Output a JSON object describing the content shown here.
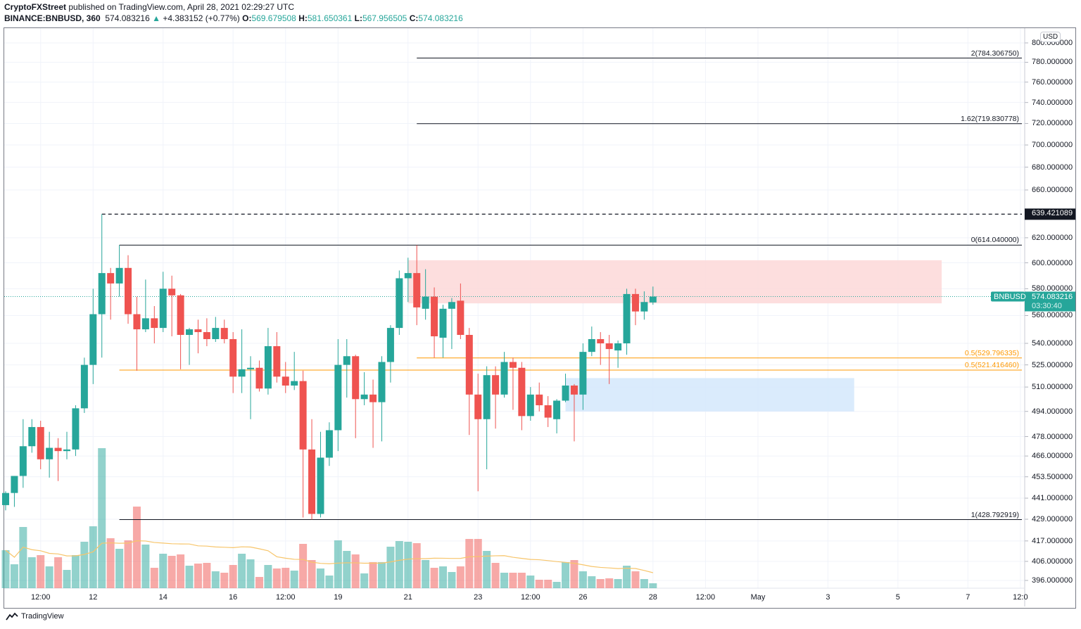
{
  "header": {
    "author": "CryptoFXStreet",
    "published": " published on TradingView.com, April 28, 2021 02:29:27 UTC",
    "symbol": "BINANCE:BNBUSD, 360",
    "last": "574.083216",
    "change": "+4.383152 (+0.77%)",
    "o_label": "O:",
    "o": "569.679508",
    "h_label": "H:",
    "h": "581.650361",
    "l_label": "L:",
    "l": "567.956505",
    "c_label": "C:",
    "c": "574.083216",
    "change_icon": "triangle-up-icon"
  },
  "currency_badge": "USD",
  "logo_text": "TradingView",
  "colors": {
    "up": "#26a69a",
    "down": "#ef5350",
    "fib": "#131722",
    "fib_half": "#ff9800",
    "ma": "#f7c56b",
    "resistance_zone": "#fdd8d8",
    "support_zone": "#d3e8fb"
  },
  "chart_data": {
    "type": "candlestick",
    "interval": "360",
    "y_scale": "log",
    "ylim": [
      392,
      815.6
    ],
    "grid": true,
    "y_ticks": [
      "800.000000",
      "780.000000",
      "760.000000",
      "740.000000",
      "720.000000",
      "700.000000",
      "680.000000",
      "660.000000",
      "620.000000",
      "600.000000",
      "580.000000",
      "560.000000",
      "540.000000",
      "525.000000",
      "510.000000",
      "494.000000",
      "478.000000",
      "466.000000",
      "453.500000",
      "441.000000",
      "429.000000",
      "417.000000",
      "406.000000",
      "396.000000"
    ],
    "x_ticks": [
      {
        "label": "12:00",
        "t": "2021-04-10 12:00"
      },
      {
        "label": "12",
        "t": "2021-04-12 00:00"
      },
      {
        "label": "14",
        "t": "2021-04-14 00:00"
      },
      {
        "label": "16",
        "t": "2021-04-16 00:00"
      },
      {
        "label": "12:00",
        "t": "2021-04-17 12:00"
      },
      {
        "label": "19",
        "t": "2021-04-19 00:00"
      },
      {
        "label": "21",
        "t": "2021-04-21 00:00"
      },
      {
        "label": "23",
        "t": "2021-04-23 00:00"
      },
      {
        "label": "12:00",
        "t": "2021-04-24 12:00"
      },
      {
        "label": "26",
        "t": "2021-04-26 00:00"
      },
      {
        "label": "28",
        "t": "2021-04-28 00:00"
      },
      {
        "label": "12:00",
        "t": "2021-04-29 12:00"
      },
      {
        "label": "May",
        "t": "2021-05-01 00:00"
      },
      {
        "label": "3",
        "t": "2021-05-03 00:00"
      },
      {
        "label": "5",
        "t": "2021-05-05 00:00"
      },
      {
        "label": "7",
        "t": "2021-05-07 00:00"
      },
      {
        "label": "12:0",
        "t": "2021-05-08 12:00"
      }
    ],
    "x_end": "2021-05-09 00:00",
    "candles_fields": [
      "t",
      "open",
      "high",
      "low",
      "close",
      "volume_relative"
    ],
    "candles": [
      [
        "2021-04-09 12:00",
        437,
        445,
        434,
        444,
        54
      ],
      [
        "2021-04-09 18:00",
        444,
        454,
        436,
        454,
        34
      ],
      [
        "2021-04-10 00:00",
        454,
        489,
        447,
        472,
        87
      ],
      [
        "2021-04-10 06:00",
        472,
        489,
        468,
        484,
        44
      ],
      [
        "2021-04-10 12:00",
        484,
        488,
        458,
        464,
        47
      ],
      [
        "2021-04-10 18:00",
        464,
        481,
        453,
        471,
        31
      ],
      [
        "2021-04-11 00:00",
        471,
        477,
        451,
        469,
        44
      ],
      [
        "2021-04-11 06:00",
        469,
        481,
        464,
        470,
        26
      ],
      [
        "2021-04-11 12:00",
        470,
        498,
        466,
        496,
        47
      ],
      [
        "2021-04-11 18:00",
        496,
        530,
        493,
        525,
        66
      ],
      [
        "2021-04-12 00:00",
        525,
        580,
        512,
        561,
        88
      ],
      [
        "2021-04-12 06:00",
        561,
        639.42,
        530,
        592,
        199
      ],
      [
        "2021-04-12 12:00",
        592,
        596,
        557,
        584,
        71
      ],
      [
        "2021-04-12 18:00",
        584,
        614.04,
        574,
        596,
        56
      ],
      [
        "2021-04-13 00:00",
        596,
        606,
        554,
        561,
        68
      ],
      [
        "2021-04-13 06:00",
        561,
        574,
        521,
        550,
        116
      ],
      [
        "2021-04-13 12:00",
        550,
        587,
        548,
        558,
        62
      ],
      [
        "2021-04-13 18:00",
        558,
        567,
        540,
        551,
        29
      ],
      [
        "2021-04-14 00:00",
        551,
        593,
        548,
        580,
        49
      ],
      [
        "2021-04-14 06:00",
        580,
        590,
        545,
        575,
        46
      ],
      [
        "2021-04-14 12:00",
        575,
        576,
        522,
        546,
        48
      ],
      [
        "2021-04-14 18:00",
        546,
        551,
        525,
        550,
        32
      ],
      [
        "2021-04-15 00:00",
        550,
        557,
        533,
        548,
        35
      ],
      [
        "2021-04-15 06:00",
        548,
        558,
        538,
        543,
        36
      ],
      [
        "2021-04-15 12:00",
        543,
        559,
        541,
        551,
        24
      ],
      [
        "2021-04-15 18:00",
        551,
        557,
        540,
        543,
        22
      ],
      [
        "2021-04-16 00:00",
        543,
        548,
        506,
        517,
        33
      ],
      [
        "2021-04-16 06:00",
        517,
        550,
        506,
        522,
        49
      ],
      [
        "2021-04-16 12:00",
        522,
        531,
        489,
        523,
        41
      ],
      [
        "2021-04-16 18:00",
        523,
        528,
        507,
        509,
        16
      ],
      [
        "2021-04-17 00:00",
        509,
        551,
        505,
        538,
        33
      ],
      [
        "2021-04-17 06:00",
        538,
        548,
        513,
        517,
        28
      ],
      [
        "2021-04-17 12:00",
        517,
        527,
        506,
        511,
        29
      ],
      [
        "2021-04-17 18:00",
        511,
        534,
        508,
        514,
        25
      ],
      [
        "2021-04-18 00:00",
        514,
        521,
        430,
        470,
        63
      ],
      [
        "2021-04-18 06:00",
        470,
        489,
        428.79,
        432,
        40
      ],
      [
        "2021-04-18 12:00",
        432,
        481,
        430,
        465,
        28
      ],
      [
        "2021-04-18 18:00",
        465,
        487,
        460,
        482,
        18
      ],
      [
        "2021-04-19 00:00",
        482,
        543,
        469,
        525,
        68
      ],
      [
        "2021-04-19 06:00",
        525,
        543,
        503,
        531,
        53
      ],
      [
        "2021-04-19 12:00",
        531,
        532,
        477,
        502,
        48
      ],
      [
        "2021-04-19 18:00",
        502,
        520,
        498,
        505,
        21
      ],
      [
        "2021-04-20 00:00",
        505,
        515,
        471,
        500,
        37
      ],
      [
        "2021-04-20 06:00",
        500,
        531,
        475,
        527,
        37
      ],
      [
        "2021-04-20 12:00",
        527,
        553,
        513,
        551,
        59
      ],
      [
        "2021-04-20 18:00",
        551,
        594,
        546,
        588,
        67
      ],
      [
        "2021-04-21 00:00",
        588,
        604,
        570,
        592,
        66
      ],
      [
        "2021-04-21 06:00",
        592,
        614,
        553,
        566,
        64
      ],
      [
        "2021-04-21 12:00",
        565,
        595,
        557,
        574,
        40
      ],
      [
        "2021-04-21 18:00",
        574,
        581,
        530,
        545,
        29
      ],
      [
        "2021-04-22 00:00",
        544,
        568,
        530,
        565,
        31
      ],
      [
        "2021-04-22 06:00",
        565,
        573,
        536,
        570,
        23
      ],
      [
        "2021-04-22 12:00",
        571,
        584,
        543,
        546,
        31
      ],
      [
        "2021-04-22 18:00",
        546,
        551,
        479,
        505,
        70
      ],
      [
        "2021-04-23 00:00",
        505,
        519,
        445,
        489,
        70
      ],
      [
        "2021-04-23 06:00",
        489,
        524,
        458,
        518,
        53
      ],
      [
        "2021-04-23 12:00",
        518,
        524,
        483,
        505,
        36
      ],
      [
        "2021-04-23 18:00",
        505,
        534,
        503,
        527,
        22
      ],
      [
        "2021-04-24 00:00",
        527,
        530,
        495,
        523,
        22
      ],
      [
        "2021-04-24 06:00",
        523,
        527,
        482,
        491,
        22
      ],
      [
        "2021-04-24 12:00",
        491,
        510,
        488,
        505,
        18
      ],
      [
        "2021-04-24 18:00",
        505,
        513,
        494,
        498,
        12
      ],
      [
        "2021-04-25 00:00",
        498,
        504,
        484,
        490,
        12
      ],
      [
        "2021-04-25 06:00",
        489,
        502,
        480,
        501,
        9
      ],
      [
        "2021-04-25 12:00",
        501,
        519,
        500,
        511,
        37
      ],
      [
        "2021-04-25 18:00",
        511,
        512,
        475,
        505,
        40
      ],
      [
        "2021-04-26 00:00",
        505,
        540,
        495,
        534,
        24
      ],
      [
        "2021-04-26 06:00",
        534,
        552,
        531,
        543,
        17
      ],
      [
        "2021-04-26 12:00",
        543,
        548,
        525,
        540,
        13
      ],
      [
        "2021-04-26 18:00",
        540,
        546,
        512,
        536,
        14
      ],
      [
        "2021-04-27 00:00",
        535,
        542,
        523,
        540,
        13
      ],
      [
        "2021-04-27 06:00",
        540,
        580,
        532,
        576,
        32
      ],
      [
        "2021-04-27 12:00",
        576,
        580,
        553,
        563,
        24
      ],
      [
        "2021-04-27 18:00",
        563,
        578,
        557,
        570,
        13
      ],
      [
        "2021-04-28 00:00",
        569.679508,
        581.650361,
        567.956505,
        574.083216,
        7
      ]
    ],
    "volume_ma_period": 20,
    "levels": [
      {
        "label": "2(784.306750)",
        "price": 784.30675,
        "from": "2021-04-21 06:00",
        "style": "solid",
        "color": "fib"
      },
      {
        "label": "1.62(719.830778)",
        "price": 719.830778,
        "from": "2021-04-21 06:00",
        "style": "solid",
        "color": "fib"
      },
      {
        "label": "",
        "price": 639.421089,
        "from": "2021-04-12 06:00",
        "style": "dashed",
        "color": "fib"
      },
      {
        "label": "0(614.040000)",
        "price": 614.04,
        "from": "2021-04-12 18:00",
        "style": "solid",
        "color": "fib"
      },
      {
        "label": "0.5(529.796335)",
        "price": 529.796335,
        "from": "2021-04-21 06:00",
        "style": "solid",
        "color": "fib_half"
      },
      {
        "label": "0.5(521.416460)",
        "price": 521.41646,
        "from": "2021-04-12 18:00",
        "style": "solid",
        "color": "fib_half"
      },
      {
        "label": "1(428.792919)",
        "price": 428.792919,
        "from": "2021-04-12 18:00",
        "style": "solid",
        "color": "fib"
      }
    ],
    "zones": [
      {
        "name": "resistance",
        "from": "2021-04-21 00:00",
        "to": "2021-05-06 06:00",
        "top": 602,
        "bottom": 569,
        "color": "resistance_zone"
      },
      {
        "name": "support",
        "from": "2021-04-25 12:00",
        "to": "2021-05-03 18:00",
        "top": 516,
        "bottom": 494,
        "color": "support_zone"
      }
    ],
    "high_label": "639.421089",
    "price_label": {
      "symbol": "BNBUSD",
      "price": "574.083216",
      "countdown": "03:30:40"
    }
  }
}
